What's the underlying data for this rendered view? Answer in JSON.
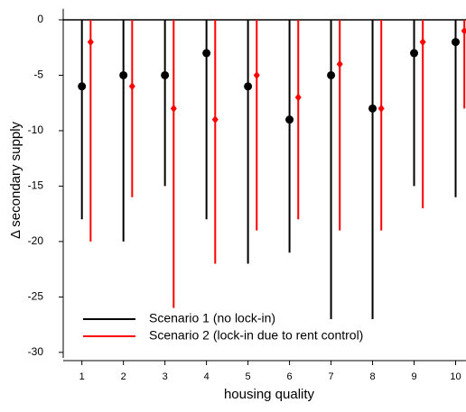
{
  "chart_data": {
    "type": "errorbar",
    "xlabel": "housing quality",
    "ylabel": "Δ secondary supply",
    "x": [
      1,
      2,
      3,
      4,
      5,
      6,
      7,
      8,
      9,
      10
    ],
    "xlim": [
      0.55,
      10.25
    ],
    "xticks": [
      1,
      2,
      3,
      4,
      5,
      6,
      7,
      8,
      9,
      10
    ],
    "ylim": [
      -30.5,
      1
    ],
    "yticks": [
      0,
      -5,
      -10,
      -15,
      -20,
      -25,
      -30
    ],
    "legend": "lower left",
    "series": [
      {
        "name": "Scenario 1 (no lock-in)",
        "color": "#000000",
        "marker": "circle",
        "values": [
          -6,
          -5,
          -5,
          -3,
          -6,
          -9,
          -5,
          -8,
          -3,
          -2
        ],
        "lower": [
          -18,
          -20,
          -15,
          -18,
          -22,
          -21,
          -27,
          -27,
          -15,
          -16
        ],
        "upper": [
          0,
          0,
          0,
          0,
          0,
          0,
          0,
          0,
          0,
          0
        ]
      },
      {
        "name": "Scenario 2 (lock-in due to rent control)",
        "color": "#ff0000",
        "marker": "diamond",
        "values": [
          -2,
          -6,
          -8,
          -9,
          -5,
          -7,
          -4,
          -8,
          -2,
          -1
        ],
        "lower": [
          -20,
          -16,
          -26,
          -22,
          -19,
          -18,
          -19,
          -19,
          -17,
          -8
        ],
        "upper": [
          0,
          0,
          0,
          0,
          0,
          0,
          0,
          0,
          0,
          0
        ]
      }
    ]
  }
}
